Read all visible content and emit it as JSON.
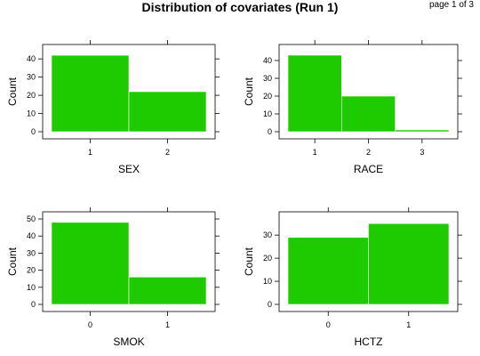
{
  "title": "Distribution of covariates (Run 1)",
  "page_indicator": "page 1 of 3",
  "bar_color": "#1ecb00",
  "chart_data": [
    {
      "type": "bar",
      "categories": [
        "1",
        "2"
      ],
      "values": [
        42,
        22
      ],
      "title": "",
      "xlabel": "SEX",
      "ylabel": "Count",
      "ylim": [
        0,
        44
      ],
      "yticks": [
        0,
        10,
        20,
        30,
        40
      ],
      "grid": false
    },
    {
      "type": "bar",
      "categories": [
        "1",
        "2",
        "3"
      ],
      "values": [
        43,
        20,
        1
      ],
      "title": "",
      "xlabel": "RACE",
      "ylabel": "Count",
      "ylim": [
        0,
        45
      ],
      "yticks": [
        0,
        10,
        20,
        30,
        40
      ],
      "grid": false
    },
    {
      "type": "bar",
      "categories": [
        "0",
        "1"
      ],
      "values": [
        48,
        16
      ],
      "title": "",
      "xlabel": "SMOK",
      "ylabel": "Count",
      "ylim": [
        0,
        50
      ],
      "yticks": [
        0,
        10,
        20,
        30,
        40,
        50
      ],
      "grid": false
    },
    {
      "type": "bar",
      "categories": [
        "0",
        "1"
      ],
      "values": [
        29,
        35
      ],
      "title": "",
      "xlabel": "HCTZ",
      "ylabel": "Count",
      "ylim": [
        0,
        37
      ],
      "yticks": [
        0,
        10,
        20,
        30
      ],
      "grid": false
    }
  ]
}
